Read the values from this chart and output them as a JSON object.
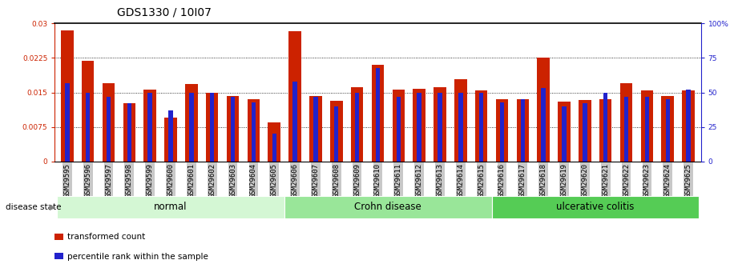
{
  "title": "GDS1330 / 10I07",
  "samples": [
    "GSM29595",
    "GSM29596",
    "GSM29597",
    "GSM29598",
    "GSM29599",
    "GSM29600",
    "GSM29601",
    "GSM29602",
    "GSM29603",
    "GSM29604",
    "GSM29605",
    "GSM29606",
    "GSM29607",
    "GSM29608",
    "GSM29609",
    "GSM29610",
    "GSM29611",
    "GSM29612",
    "GSM29613",
    "GSM29614",
    "GSM29615",
    "GSM29616",
    "GSM29617",
    "GSM29618",
    "GSM29619",
    "GSM29620",
    "GSM29621",
    "GSM29622",
    "GSM29623",
    "GSM29624",
    "GSM29625"
  ],
  "transformed_count": [
    0.0285,
    0.0218,
    0.017,
    0.0127,
    0.0157,
    0.0095,
    0.0168,
    0.015,
    0.0143,
    0.0135,
    0.0085,
    0.0283,
    0.0143,
    0.0132,
    0.0162,
    0.021,
    0.0157,
    0.0158,
    0.0162,
    0.0178,
    0.0155,
    0.0135,
    0.0135,
    0.0225,
    0.013,
    0.0133,
    0.0135,
    0.017,
    0.0155,
    0.0143,
    0.0155
  ],
  "percentile_rank": [
    57,
    50,
    47,
    42,
    50,
    37,
    50,
    50,
    47,
    43,
    20,
    58,
    47,
    40,
    50,
    68,
    47,
    50,
    50,
    50,
    50,
    43,
    45,
    53,
    40,
    42,
    50,
    47,
    47,
    45,
    52
  ],
  "groups": [
    {
      "label": "normal",
      "start": 0,
      "end": 10,
      "color": "#d4f7d4"
    },
    {
      "label": "Crohn disease",
      "start": 11,
      "end": 20,
      "color": "#99e699"
    },
    {
      "label": "ulcerative colitis",
      "start": 21,
      "end": 30,
      "color": "#55cc55"
    }
  ],
  "bar_color_red": "#cc2200",
  "bar_color_blue": "#2222cc",
  "left_ylim": [
    0,
    0.03
  ],
  "right_ylim": [
    0,
    100
  ],
  "left_yticks": [
    0,
    0.0075,
    0.015,
    0.0225,
    0.03
  ],
  "left_yticklabels": [
    "0",
    "0.0075",
    "0.015",
    "0.0225",
    "0.03"
  ],
  "right_yticks": [
    0,
    25,
    50,
    75,
    100
  ],
  "right_yticklabels": [
    "0",
    "25",
    "50",
    "75",
    "100%"
  ],
  "title_fontsize": 10,
  "tick_fontsize": 6.5,
  "group_label_fontsize": 8.5,
  "disease_state_label": "disease state",
  "legend_red_label": "transformed count",
  "legend_blue_label": "percentile rank within the sample",
  "background_color": "#ffffff",
  "plot_bg_color": "#ffffff",
  "xtick_bg_color": "#c8c8c8"
}
